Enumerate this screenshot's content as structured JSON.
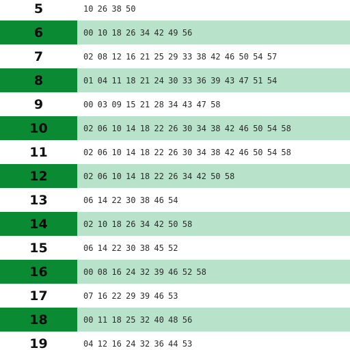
{
  "colors": {
    "highlight_hour": "#0b8a34",
    "highlight_row": "#b9e2ca",
    "plain_row": "#ffffff"
  },
  "rows": [
    {
      "hour": "5",
      "minutes": "10 26 38 50",
      "highlighted": false
    },
    {
      "hour": "6",
      "minutes": "00 10 18 26 34 42 49 56",
      "highlighted": true
    },
    {
      "hour": "7",
      "minutes": "02 08 12 16 21 25 29 33 38 42 46 50 54 57",
      "highlighted": false
    },
    {
      "hour": "8",
      "minutes": "01 04 11 18 21 24 30 33 36 39 43 47 51 54",
      "highlighted": true
    },
    {
      "hour": "9",
      "minutes": "00 03 09 15 21 28 34 43 47 58",
      "highlighted": false
    },
    {
      "hour": "10",
      "minutes": "02 06 10 14 18 22 26 30 34 38 42 46 50 54 58",
      "highlighted": true
    },
    {
      "hour": "11",
      "minutes": "02 06 10 14 18 22 26 30 34 38 42 46 50 54 58",
      "highlighted": false
    },
    {
      "hour": "12",
      "minutes": "02 06 10 14 18 22 26 34 42 50 58",
      "highlighted": true
    },
    {
      "hour": "13",
      "minutes": "06 14 22 30 38 46 54",
      "highlighted": false
    },
    {
      "hour": "14",
      "minutes": "02 10 18 26 34 42 50 58",
      "highlighted": true
    },
    {
      "hour": "15",
      "minutes": "06 14 22 30 38 45 52",
      "highlighted": false
    },
    {
      "hour": "16",
      "minutes": "00 08 16 24 32 39 46 52 58",
      "highlighted": true
    },
    {
      "hour": "17",
      "minutes": "07 16 22 29 39 46 53",
      "highlighted": false
    },
    {
      "hour": "18",
      "minutes": "00 11 18 25 32 40 48 56",
      "highlighted": true
    },
    {
      "hour": "19",
      "minutes": "04 12 16 24 32 36 44 53",
      "highlighted": false
    }
  ]
}
